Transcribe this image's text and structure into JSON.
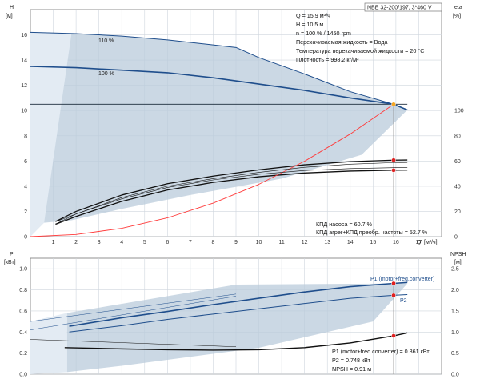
{
  "header": {
    "pump_model": "NBE 32-200/197, 3*460 V"
  },
  "operating_point": {
    "lines": [
      "Q = 15.9 м³/ч",
      "H = 10.5 м",
      "n = 100 % / 1450 rpm",
      "Перекачиваемая жидкость = Вода",
      "Температура перекачиваемой жидкости = 20 °C",
      "Плотность = 998.2 кг/м³"
    ]
  },
  "efficiency_info": {
    "lines": [
      "КПД насоса = 60.7 %",
      "КПД агрег+КПД преобр. частоты = 52.7 %"
    ]
  },
  "power_info": {
    "lines": [
      "P1 (motor+freq.converter) = 0.861 кВт",
      "P2 = 0.748 кВт",
      "NPSH = 0.91 м"
    ]
  },
  "chart_data": [
    {
      "type": "line",
      "panel": "head-efficiency",
      "y_left_label": "H",
      "y_left_unit": "[м]",
      "y_right_label": "eta",
      "y_right_unit": "[%]",
      "x_label": "Q",
      "x_unit": "[м³/ч]",
      "xlim": [
        0,
        18
      ],
      "ylim_left": [
        0,
        18
      ],
      "ylim_right": [
        0,
        180
      ],
      "x_ticks": [
        "1",
        "2",
        "3",
        "4",
        "5",
        "6",
        "7",
        "8",
        "9",
        "10",
        "11",
        "12",
        "13",
        "14",
        "15",
        "16",
        "17"
      ],
      "y_left_ticks": [
        "0",
        "2",
        "4",
        "6",
        "8",
        "10",
        "12",
        "14",
        "16"
      ],
      "y_right_ticks": [
        "0",
        "20",
        "40",
        "60",
        "80",
        "100"
      ],
      "duty_line_H": 10.5,
      "annotations": [
        "110 %",
        "100 %"
      ],
      "series": [
        {
          "name": "110 %",
          "x": [
            0,
            2,
            4,
            6,
            8,
            9,
            10,
            12,
            14,
            15.9,
            16.5
          ],
          "y": [
            16.2,
            16.1,
            15.9,
            15.6,
            15.2,
            15.0,
            14.2,
            12.9,
            11.5,
            10.5,
            10.05
          ]
        },
        {
          "name": "100 %",
          "x": [
            0,
            2,
            4,
            6,
            8,
            10,
            12,
            14,
            15.9,
            16.5
          ],
          "y": [
            13.5,
            13.4,
            13.2,
            13.0,
            12.6,
            12.1,
            11.6,
            11.0,
            10.5,
            10.05
          ]
        },
        {
          "name": "eta_pump",
          "x": [
            1.1,
            2,
            4,
            6,
            8,
            10,
            12,
            14,
            15.9,
            16.5
          ],
          "y": [
            12,
            20,
            33,
            42,
            48,
            53,
            57,
            59.5,
            60.7,
            60.8
          ]
        },
        {
          "name": "eta_total",
          "x": [
            1.1,
            2,
            4,
            6,
            8,
            10,
            12,
            14,
            15.9,
            16.5
          ],
          "y": [
            9.8,
            16,
            28,
            37,
            43,
            47.5,
            50.5,
            52,
            52.7,
            52.8
          ]
        },
        {
          "name": "system_curve",
          "x": [
            0,
            2,
            4,
            6,
            8,
            10,
            12,
            14,
            15.9
          ],
          "y": [
            0,
            0.17,
            0.66,
            1.49,
            2.66,
            4.15,
            5.98,
            8.14,
            10.5
          ]
        }
      ],
      "points": [
        {
          "series": "duty",
          "x": 15.9,
          "y": 10.5
        },
        {
          "series": "eta_pump",
          "x": 15.9,
          "y": 60.7
        },
        {
          "series": "eta_total",
          "x": 15.9,
          "y": 52.7
        }
      ]
    },
    {
      "type": "line",
      "panel": "power-npsh",
      "y_left_label": "P",
      "y_left_unit": "[кВт]",
      "y_right_label": "NPSH",
      "y_right_unit": "[м]",
      "xlim": [
        0,
        18
      ],
      "ylim_left": [
        0,
        1.1
      ],
      "ylim_right": [
        0,
        2.75
      ],
      "y_left_ticks": [
        "0.0",
        "0.2",
        "0.4",
        "0.6",
        "0.8",
        "1.0"
      ],
      "y_right_ticks": [
        "0.0",
        "0.5",
        "1.0",
        "1.5",
        "2.0",
        "2.5"
      ],
      "series": [
        {
          "name": "P1 (motor+freq.converter)",
          "x": [
            1.7,
            4,
            6,
            8,
            10,
            12,
            14,
            15.9,
            16.5
          ],
          "y": [
            0.455,
            0.535,
            0.595,
            0.66,
            0.72,
            0.78,
            0.83,
            0.861,
            0.87
          ]
        },
        {
          "name": "P2",
          "x": [
            1.7,
            4,
            6,
            8,
            10,
            12,
            14,
            15.9,
            16.5
          ],
          "y": [
            0.4,
            0.46,
            0.52,
            0.57,
            0.62,
            0.67,
            0.72,
            0.748,
            0.755
          ]
        },
        {
          "name": "NPSH",
          "x": [
            1.5,
            4,
            6,
            8,
            10,
            12,
            14,
            15.9,
            16.5
          ],
          "y": [
            0.63,
            0.6,
            0.58,
            0.57,
            0.58,
            0.63,
            0.74,
            0.91,
            0.98
          ]
        }
      ],
      "points": [
        {
          "series": "P1 (motor+freq.converter)",
          "x": 15.9,
          "y": 0.861
        },
        {
          "series": "P2",
          "x": 15.9,
          "y": 0.748
        },
        {
          "series": "NPSH",
          "x": 15.9,
          "y": 0.91
        }
      ]
    }
  ],
  "colors": {
    "band_fill": "#b9cbdb",
    "curve_blue": "#1f4e8c",
    "curve_black": "#111111",
    "system_red": "#ff3b3b",
    "duty_orange": "#f5a623",
    "marker_red": "#e02020"
  }
}
